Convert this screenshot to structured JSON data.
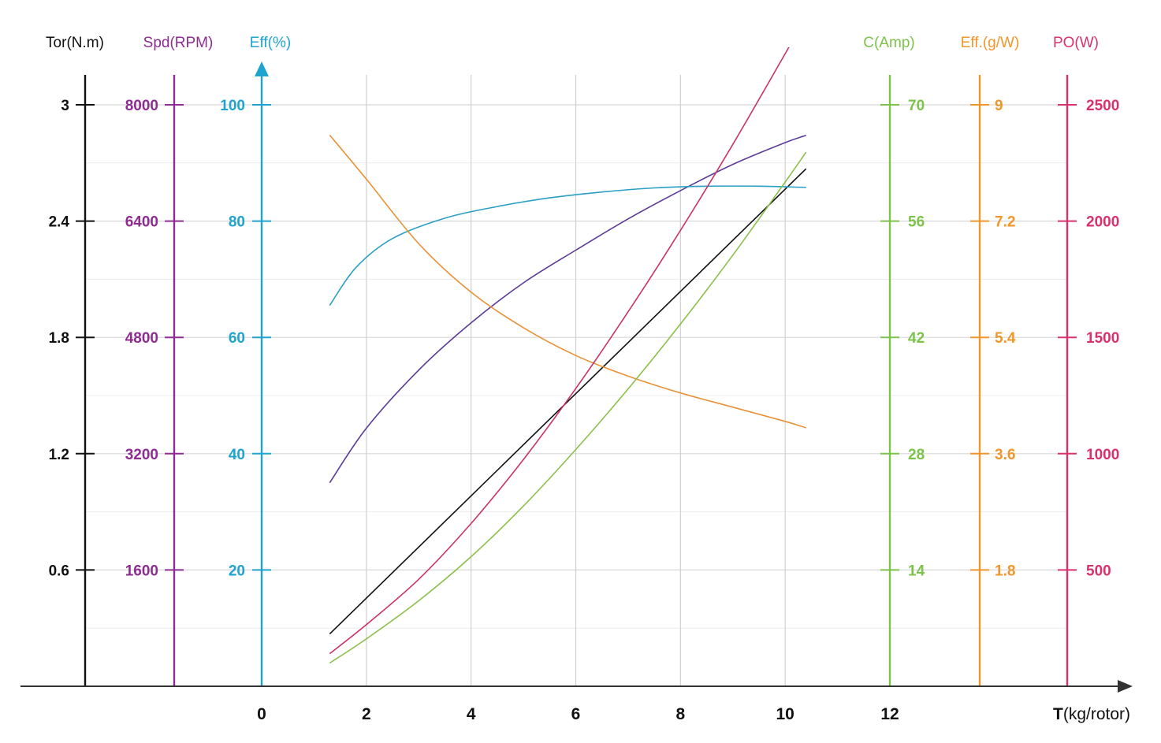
{
  "chart_data": {
    "type": "line",
    "x_axis": {
      "label_bold": "T",
      "label_rest": "(kg/rotor)",
      "ticks": [
        0,
        2,
        4,
        6,
        8,
        10,
        12
      ],
      "range": [
        0,
        12
      ],
      "color": "#333333"
    },
    "y_axes": [
      {
        "key": "tor",
        "title": "Tor(N.m)",
        "color": "#111111",
        "side": "left",
        "range": [
          0,
          3
        ],
        "ticks": [
          0.6,
          1.2,
          1.8,
          2.4,
          3
        ]
      },
      {
        "key": "spd",
        "title": "Spd(RPM)",
        "color": "#8e2c91",
        "side": "left",
        "range": [
          0,
          8000
        ],
        "ticks": [
          1600,
          3200,
          4800,
          6400,
          8000
        ]
      },
      {
        "key": "eff",
        "title": "Eff(%)",
        "color": "#1fa3cf",
        "side": "left",
        "range": [
          0,
          100
        ],
        "ticks": [
          20,
          40,
          60,
          80,
          100
        ],
        "arrow": true
      },
      {
        "key": "amp",
        "title": "C(Amp)",
        "color": "#7cc34a",
        "side": "right",
        "range": [
          0,
          70
        ],
        "ticks": [
          14,
          28,
          42,
          56,
          70
        ]
      },
      {
        "key": "gw",
        "title": "Eff.(g/W)",
        "color": "#f0962a",
        "side": "right",
        "range": [
          0,
          9
        ],
        "ticks": [
          1.8,
          3.6,
          5.4,
          7.2,
          9
        ]
      },
      {
        "key": "po",
        "title": "PO(W)",
        "color": "#d9316e",
        "side": "right",
        "range": [
          0,
          2500
        ],
        "ticks": [
          500,
          1000,
          1500,
          2000,
          2500
        ]
      }
    ],
    "series": [
      {
        "axis": "tor",
        "color": "#111111",
        "x": [
          1.3,
          10.4
        ],
        "y": [
          0.27,
          2.67
        ]
      },
      {
        "axis": "spd",
        "color": "#5b3b97",
        "x": [
          1.3,
          2,
          3,
          4,
          5,
          6,
          7,
          8,
          9,
          10,
          10.4
        ],
        "y": [
          2800,
          3550,
          4350,
          5000,
          5550,
          6000,
          6430,
          6820,
          7180,
          7480,
          7580
        ]
      },
      {
        "axis": "eff",
        "color": "#2a9fc3",
        "x": [
          1.3,
          1.8,
          2.5,
          3.5,
          4.5,
          5.5,
          6.5,
          7.5,
          8.5,
          9.5,
          10.4
        ],
        "y": [
          65.5,
          72,
          77,
          80.5,
          82.5,
          84,
          85,
          85.7,
          86,
          86,
          85.8
        ]
      },
      {
        "axis": "gw",
        "color": "#e89238",
        "x": [
          1.3,
          2,
          3,
          4,
          5,
          6,
          7,
          8,
          9,
          10,
          10.4
        ],
        "y": [
          8.53,
          7.85,
          6.85,
          6.1,
          5.55,
          5.12,
          4.8,
          4.54,
          4.32,
          4.1,
          4.0
        ]
      },
      {
        "axis": "amp",
        "color": "#8cbf4a",
        "x": [
          1.3,
          2,
          3,
          4,
          5,
          6,
          7,
          8,
          9,
          10,
          10.4
        ],
        "y": [
          2.8,
          5.7,
          10.3,
          15.6,
          21.7,
          28.5,
          35.8,
          43.6,
          51.9,
          60.7,
          64.3
        ]
      },
      {
        "axis": "po",
        "color": "#c8326a",
        "x": [
          1.3,
          2,
          3,
          4,
          5,
          6,
          7,
          8,
          9,
          10,
          10.4
        ],
        "y": [
          140,
          265,
          460,
          700,
          975,
          1280,
          1610,
          1960,
          2330,
          2720,
          2880
        ]
      }
    ]
  }
}
